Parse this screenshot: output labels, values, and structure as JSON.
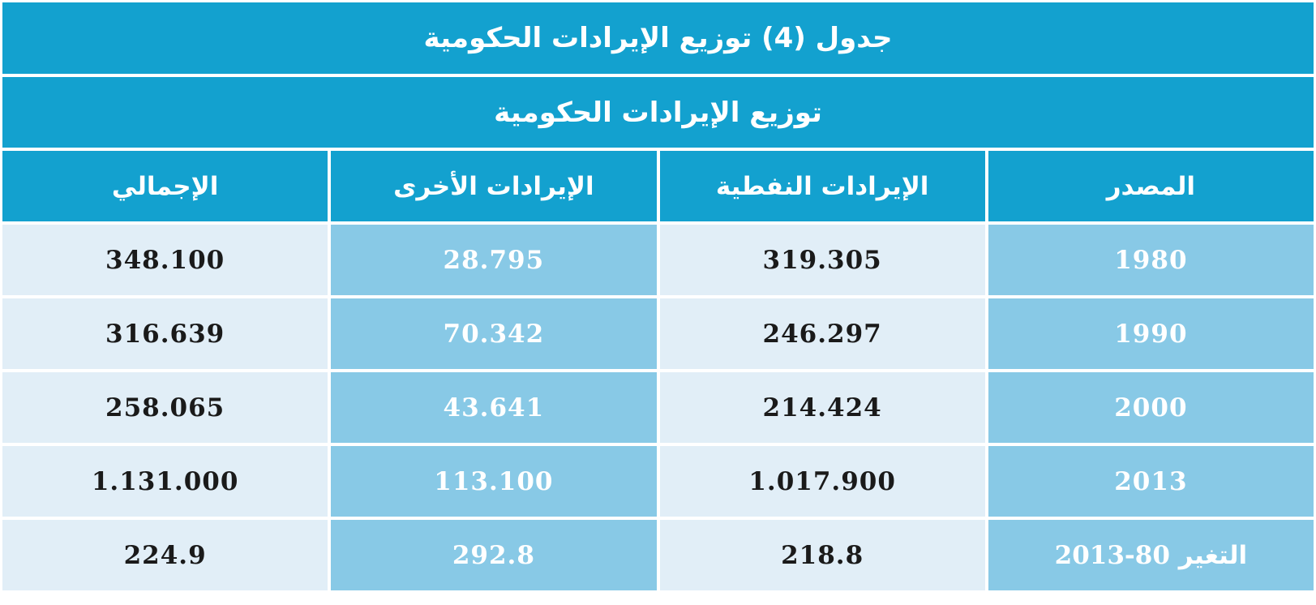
{
  "table": {
    "title": "جدول (4) توزيع الإيرادات الحكومية",
    "subtitle": "توزيع الإيرادات الحكومية",
    "headers": {
      "source": "المصدر",
      "oil_revenue": "الإيرادات النفطية",
      "other_revenue": "الإيرادات الأخرى",
      "total": "الإجمالي"
    },
    "rows": [
      {
        "source": "1980",
        "oil_revenue": "319.305",
        "other_revenue": "28.795",
        "total": "348.100"
      },
      {
        "source": "1990",
        "oil_revenue": "246.297",
        "other_revenue": "70.342",
        "total": "316.639"
      },
      {
        "source": "2000",
        "oil_revenue": "214.424",
        "other_revenue": "43.641",
        "total": "258.065"
      },
      {
        "source": "2013",
        "oil_revenue": "1.017.900",
        "other_revenue": "113.100",
        "total": "1.131.000"
      }
    ],
    "change_row": {
      "label": "التغير",
      "period": "2013-80",
      "oil_revenue": "218.8",
      "other_revenue": "292.8",
      "total": "224.9"
    }
  },
  "colors": {
    "header_blue": "#13a1cf",
    "mid_blue": "#88c9e6",
    "light_blue": "#e1eef7"
  }
}
